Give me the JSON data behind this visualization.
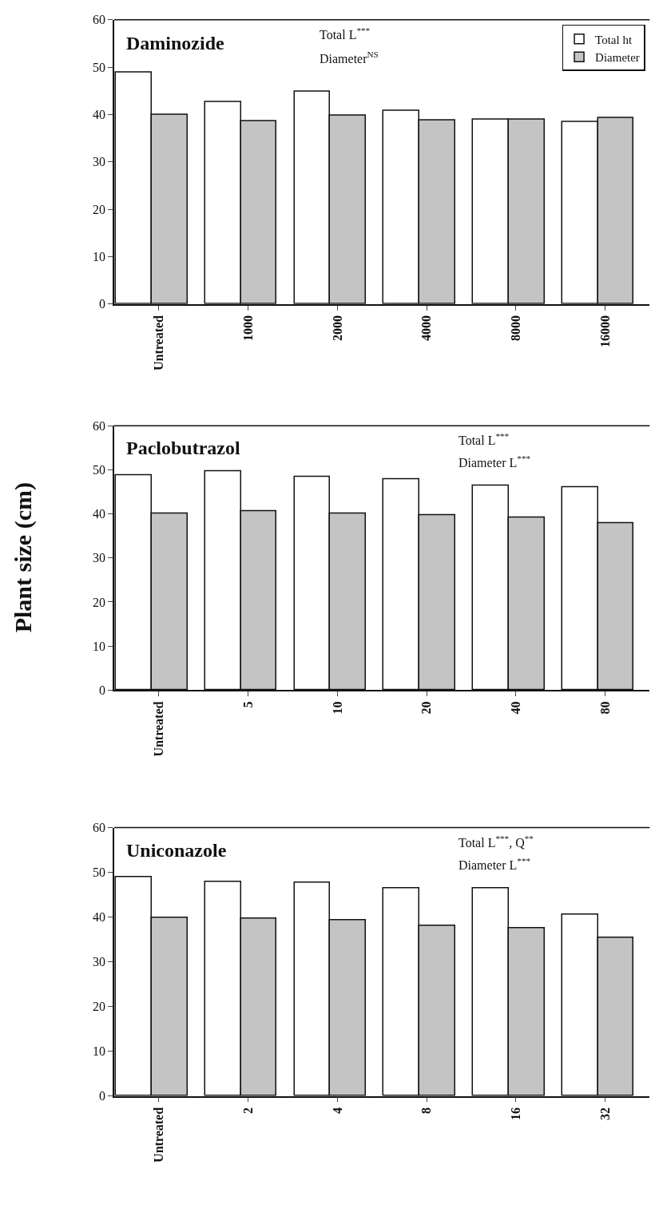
{
  "chart_data": [
    {
      "type": "bar",
      "title": "Daminozide",
      "categories": [
        "Untreated",
        "1000",
        "2000",
        "4000",
        "8000",
        "16000"
      ],
      "series": [
        {
          "name": "Total ht",
          "color": "#ffffff",
          "values": [
            48.8,
            42.6,
            44.8,
            40.8,
            39.0,
            38.4
          ]
        },
        {
          "name": "Diameter",
          "color": "#c4c4c4",
          "values": [
            40.0,
            38.6,
            39.7,
            38.8,
            39.0,
            39.2
          ]
        }
      ],
      "annotations": [
        "Total L$^{***}$",
        "Diameter$^{NS}$"
      ],
      "ylim": [
        0,
        60
      ],
      "yticks": [
        0,
        10,
        20,
        30,
        40,
        50,
        60
      ],
      "grid": false,
      "legend": "top right"
    },
    {
      "type": "bar",
      "title": "Paclobutrazol",
      "ylabel": "Plant size (cm)",
      "categories": [
        "Untreated",
        "5",
        "10",
        "20",
        "40",
        "80"
      ],
      "series": [
        {
          "color": "#ffffff",
          "values": [
            48.8,
            49.7,
            48.5,
            47.8,
            46.5,
            46.0
          ]
        },
        {
          "color": "#c4c4c4",
          "values": [
            40.0,
            40.6,
            40.1,
            39.7,
            39.2,
            37.9
          ]
        }
      ],
      "annotations": [
        "Total L$^{***}$",
        "Diameter L$^{***}$"
      ],
      "ylim": [
        0,
        60
      ],
      "yticks": [
        0,
        10,
        20,
        30,
        40,
        50,
        60
      ],
      "grid": false,
      "legend": false
    },
    {
      "type": "bar",
      "title": "Uniconazole",
      "categories": [
        "Untreated",
        "2",
        "4",
        "8",
        "16",
        "32"
      ],
      "series": [
        {
          "color": "#ffffff",
          "values": [
            48.9,
            47.8,
            47.6,
            46.4,
            46.4,
            40.6
          ]
        },
        {
          "color": "#c4c4c4",
          "values": [
            39.9,
            39.7,
            39.3,
            38.0,
            37.6,
            35.4
          ]
        }
      ],
      "annotations": [
        "Total L$^{***}$, Q$^{**}$",
        "Diameter L$^{***}$"
      ],
      "ylim": [
        0,
        60
      ],
      "yticks": [
        0,
        10,
        20,
        30,
        40,
        50,
        60
      ],
      "grid": false,
      "legend": false
    }
  ]
}
